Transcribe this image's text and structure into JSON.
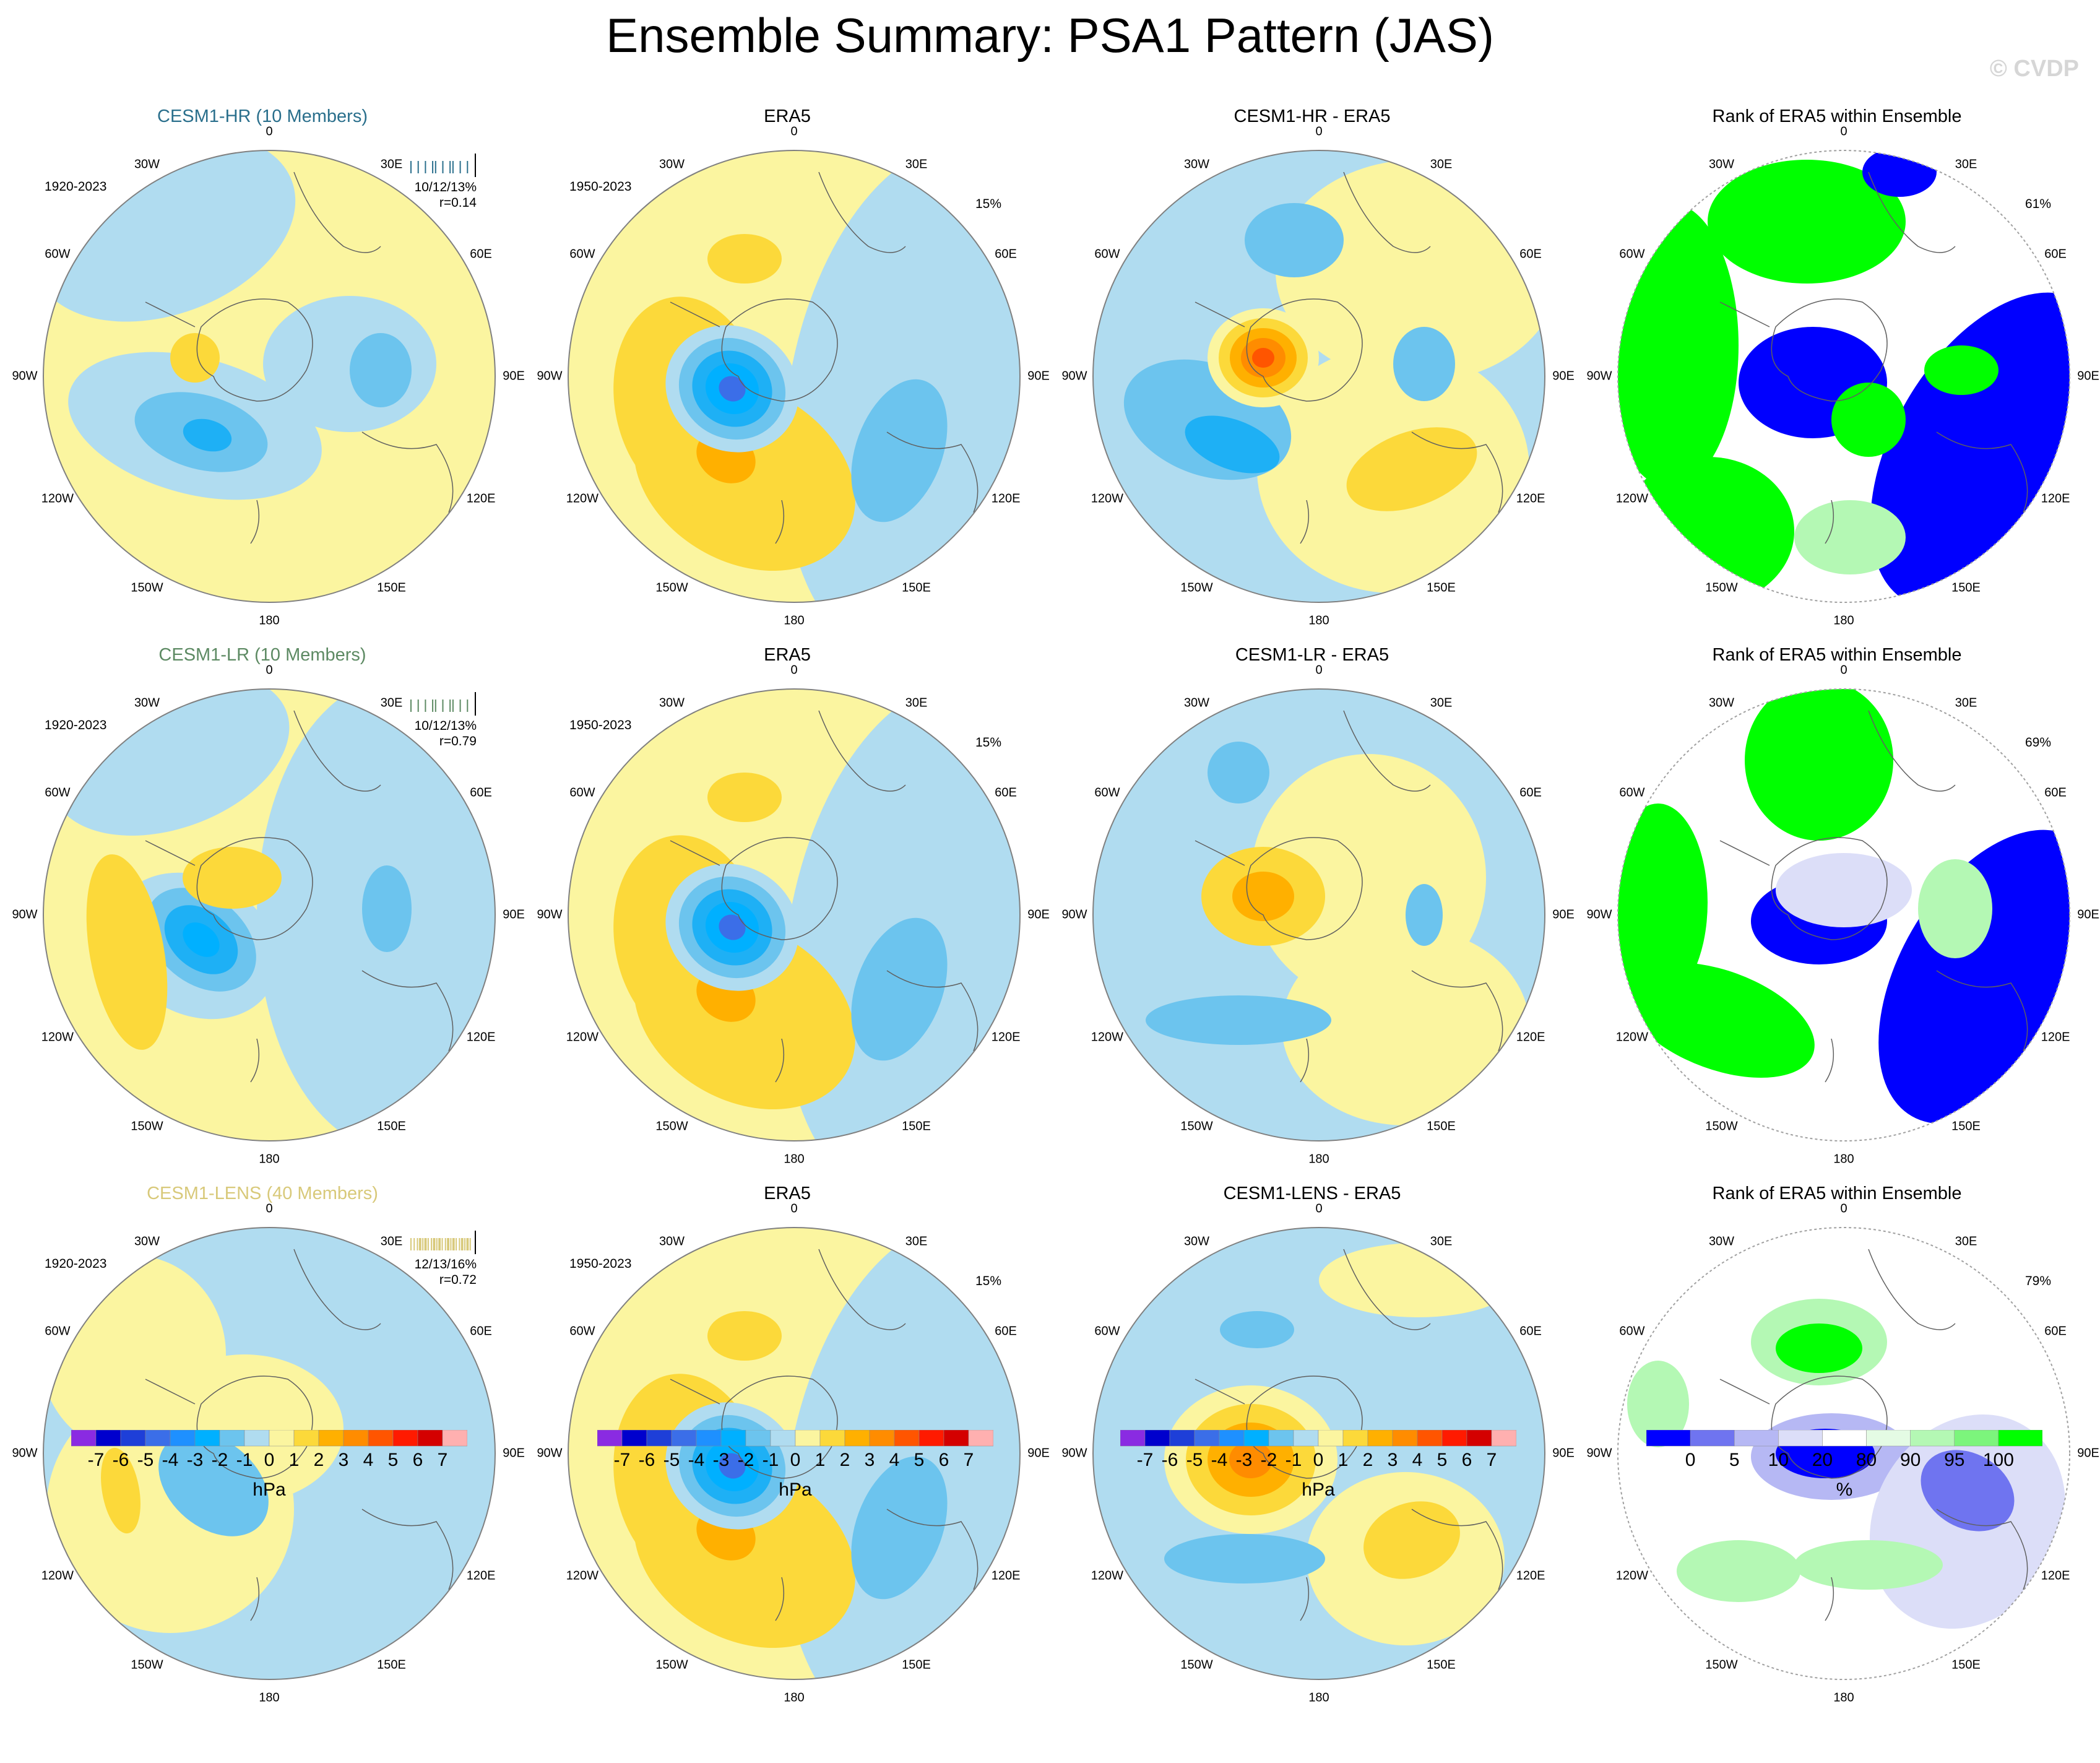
{
  "figure": {
    "title": "Ensemble Summary: PSA1 Pattern (JAS)",
    "copyright": "© CVDP"
  },
  "longitude_labels": [
    "0",
    "30E",
    "60E",
    "90E",
    "120E",
    "150E",
    "180",
    "150W",
    "120W",
    "90W",
    "60W",
    "30W"
  ],
  "rows": [
    {
      "model": {
        "title": "CESM1-HR (10 Members)",
        "title_color": "#2a6f8c",
        "period": "1920-2023",
        "stats_line1": "10/12/13%",
        "stats_line2": "r=0.14"
      },
      "era5": {
        "title": "ERA5",
        "period": "1950-2023",
        "pct": "15%"
      },
      "diff": {
        "title": "CESM1-HR - ERA5"
      },
      "rank": {
        "title": "Rank of ERA5 within Ensemble",
        "pct": "61%"
      }
    },
    {
      "model": {
        "title": "CESM1-LR (10 Members)",
        "title_color": "#5d8a63",
        "period": "1920-2023",
        "stats_line1": "10/12/13%",
        "stats_line2": "r=0.79"
      },
      "era5": {
        "title": "ERA5",
        "period": "1950-2023",
        "pct": "15%"
      },
      "diff": {
        "title": "CESM1-LR - ERA5"
      },
      "rank": {
        "title": "Rank of ERA5 within Ensemble",
        "pct": "69%"
      }
    },
    {
      "model": {
        "title": "CESM1-LENS (40 Members)",
        "title_color": "#d8c97a",
        "period": "1920-2023",
        "stats_line1": "12/13/16%",
        "stats_line2": "r=0.72"
      },
      "era5": {
        "title": "ERA5",
        "period": "1950-2023",
        "pct": "15%"
      },
      "diff": {
        "title": "CESM1-LENS - ERA5"
      },
      "rank": {
        "title": "Rank of ERA5 within Ensemble",
        "pct": "79%"
      }
    }
  ],
  "hpa_colorbar": {
    "labels": [
      "-7",
      "-6",
      "-5",
      "-4",
      "-3",
      "-2",
      "-1",
      "0",
      "1",
      "2",
      "3",
      "4",
      "5",
      "6",
      "7"
    ],
    "colors": [
      "#8a2be2",
      "#0000cd",
      "#1e3fd8",
      "#3b6ee8",
      "#1e90ff",
      "#00b0ff",
      "#6cc4ee",
      "#b0dcf0",
      "#fbf5a0",
      "#fcd93a",
      "#ffb000",
      "#ff8c00",
      "#ff5500",
      "#ff1a00",
      "#d40000",
      "#ffb0b0"
    ],
    "units": "hPa"
  },
  "rank_colorbar": {
    "labels": [
      "0",
      "5",
      "10",
      "20",
      "80",
      "90",
      "95",
      "100"
    ],
    "colors": [
      "#0000ff",
      "#6f74f0",
      "#b6b8f4",
      "#dcdef8",
      "#ffffff",
      "#e4fbe4",
      "#b4f8b4",
      "#7cf57c",
      "#00ff00"
    ],
    "units": "%"
  },
  "colors": {
    "neutral_yellow": "#fbf5a0",
    "light_blue": "#b0dcf0",
    "mid_blue": "#6cc4ee",
    "ocean_edge": "#808080"
  }
}
